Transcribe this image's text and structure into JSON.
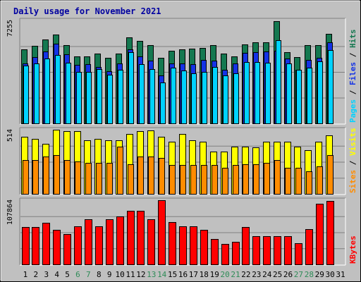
{
  "title": "Daily usage for November 2021",
  "colors": {
    "background": "#c0c0c0",
    "title": "#0000a0",
    "hits": "#147850",
    "files": "#1432e6",
    "pages": "#00d2ff",
    "visits": "#ffff00",
    "sites": "#ff8c00",
    "kbytes": "#ff0000",
    "weekend_label": "#2e8b57",
    "weekday_label": "#000000",
    "grid": "#808080"
  },
  "chart_data": [
    {
      "type": "bar",
      "name": "hits-files-pages",
      "y_tick_label": "7255",
      "ylim": [
        0,
        7255
      ],
      "legend": [
        {
          "name": "Pages",
          "color": "#00d2ff"
        },
        {
          "name": "Files",
          "color": "#1432e6"
        },
        {
          "name": "Hits",
          "color": "#147850"
        }
      ],
      "categories": [
        "1",
        "2",
        "3",
        "4",
        "5",
        "6",
        "7",
        "8",
        "9",
        "10",
        "11",
        "12",
        "13",
        "14",
        "15",
        "16",
        "17",
        "18",
        "19",
        "20",
        "21",
        "22",
        "23",
        "24",
        "25",
        "26",
        "27",
        "28",
        "29",
        "30",
        "31"
      ],
      "series": [
        {
          "name": "Hits",
          "values": [
            5200,
            5450,
            5900,
            6250,
            5500,
            4700,
            4700,
            4900,
            4600,
            4900,
            6050,
            5800,
            5500,
            4600,
            5100,
            5200,
            5250,
            5300,
            5500,
            4900,
            4700,
            5550,
            5700,
            5700,
            7200,
            5000,
            4650,
            5500,
            5500,
            6300,
            0
          ]
        },
        {
          "name": "Files",
          "values": [
            4200,
            4650,
            5050,
            5600,
            4850,
            4100,
            4150,
            4000,
            3700,
            4200,
            5200,
            4700,
            4400,
            3400,
            4200,
            4200,
            4150,
            4450,
            4400,
            3800,
            4200,
            4950,
            5000,
            5050,
            5100,
            4550,
            3800,
            4450,
            4600,
            5700,
            0
          ]
        },
        {
          "name": "Pages",
          "values": [
            4050,
            4200,
            4550,
            4800,
            4250,
            3650,
            3650,
            3850,
            3450,
            3800,
            5000,
            4150,
            3850,
            2900,
            3950,
            3750,
            3550,
            3650,
            4000,
            3400,
            3550,
            4300,
            4300,
            4250,
            5850,
            4200,
            3800,
            3950,
            4350,
            5150,
            0
          ]
        }
      ]
    },
    {
      "type": "bar",
      "name": "visits-sites",
      "y_tick_label": "514",
      "ylim": [
        0,
        514
      ],
      "legend": [
        {
          "name": "Sites",
          "color": "#ff8c00"
        },
        {
          "name": "Visits",
          "color": "#ffff00"
        }
      ],
      "categories": [
        "1",
        "2",
        "3",
        "4",
        "5",
        "6",
        "7",
        "8",
        "9",
        "10",
        "11",
        "12",
        "13",
        "14",
        "15",
        "16",
        "17",
        "18",
        "19",
        "20",
        "21",
        "22",
        "23",
        "24",
        "25",
        "26",
        "27",
        "28",
        "29",
        "30",
        "31"
      ],
      "series": [
        {
          "name": "Visits",
          "values": [
            460,
            440,
            400,
            514,
            500,
            500,
            430,
            440,
            430,
            430,
            480,
            500,
            510,
            460,
            420,
            480,
            430,
            420,
            340,
            340,
            380,
            380,
            370,
            420,
            420,
            420,
            380,
            350,
            420,
            470,
            0
          ]
        },
        {
          "name": "Sites",
          "values": [
            270,
            270,
            300,
            310,
            270,
            260,
            250,
            250,
            250,
            380,
            240,
            300,
            300,
            290,
            230,
            230,
            230,
            230,
            230,
            210,
            230,
            240,
            240,
            250,
            270,
            210,
            210,
            180,
            220,
            310,
            0
          ]
        }
      ]
    },
    {
      "type": "bar",
      "name": "kbytes",
      "y_tick_label": "107864",
      "ylim": [
        0,
        107864
      ],
      "legend": [
        {
          "name": "KBytes",
          "color": "#ff0000"
        }
      ],
      "categories": [
        "1",
        "2",
        "3",
        "4",
        "5",
        "6",
        "7",
        "8",
        "9",
        "10",
        "11",
        "12",
        "13",
        "14",
        "15",
        "16",
        "17",
        "18",
        "19",
        "20",
        "21",
        "22",
        "23",
        "24",
        "25",
        "26",
        "27",
        "28",
        "29",
        "30",
        "31"
      ],
      "series": [
        {
          "name": "KBytes",
          "values": [
            62500,
            62500,
            70000,
            58500,
            51500,
            63500,
            76000,
            63500,
            76000,
            81000,
            90000,
            90000,
            76000,
            107864,
            71000,
            63500,
            63500,
            58500,
            42500,
            34500,
            38000,
            63000,
            47500,
            47500,
            47500,
            47500,
            35500,
            59500,
            102000,
            107000,
            0
          ]
        }
      ]
    }
  ],
  "x_axis": {
    "labels": [
      "1",
      "2",
      "3",
      "4",
      "5",
      "6",
      "7",
      "8",
      "9",
      "10",
      "11",
      "12",
      "13",
      "14",
      "15",
      "16",
      "17",
      "18",
      "19",
      "20",
      "21",
      "22",
      "23",
      "24",
      "25",
      "26",
      "27",
      "28",
      "29",
      "30",
      "31"
    ],
    "weekend": [
      6,
      7,
      13,
      14,
      20,
      21,
      27,
      28
    ]
  }
}
